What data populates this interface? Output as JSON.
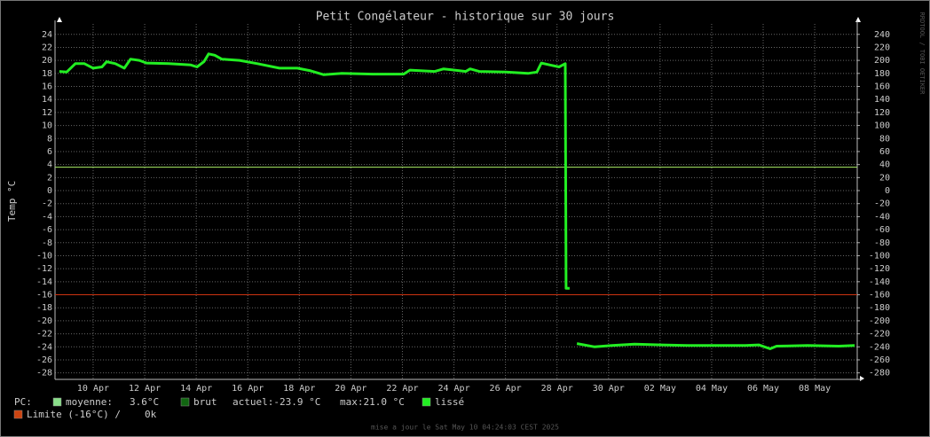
{
  "chart_data": {
    "type": "line",
    "title": "Petit Congélateur - historique sur 30 jours",
    "y_label": "Temp °C",
    "side_text": "RRDTOOL / TOBI OETIKER",
    "footer": "mise a jour le Sat May 10 04:24:03 CEST 2025",
    "xlim": [
      8.52,
      39.65
    ],
    "xticks": [
      {
        "value": 10,
        "label": "10 Apr"
      },
      {
        "value": 12,
        "label": "12 Apr"
      },
      {
        "value": 14,
        "label": "14 Apr"
      },
      {
        "value": 16,
        "label": "16 Apr"
      },
      {
        "value": 18,
        "label": "18 Apr"
      },
      {
        "value": 20,
        "label": "20 Apr"
      },
      {
        "value": 22,
        "label": "22 Apr"
      },
      {
        "value": 24,
        "label": "24 Apr"
      },
      {
        "value": 26,
        "label": "26 Apr"
      },
      {
        "value": 28,
        "label": "28 Apr"
      },
      {
        "value": 30,
        "label": "30 Apr"
      },
      {
        "value": 32,
        "label": "02 May"
      },
      {
        "value": 34,
        "label": "04 May"
      },
      {
        "value": 36,
        "label": "06 May"
      },
      {
        "value": 38,
        "label": "08 May"
      }
    ],
    "ylim": [
      -29,
      25.6
    ],
    "yticks": [
      24,
      22,
      20,
      18,
      16,
      14,
      12,
      10,
      8,
      6,
      4,
      2,
      0,
      -2,
      -4,
      -6,
      -8,
      -10,
      -12,
      -14,
      -16,
      -18,
      -20,
      -22,
      -24,
      -26,
      -28
    ],
    "y2lim": [
      -290,
      256
    ],
    "y2ticks": [
      240,
      220,
      200,
      180,
      160,
      140,
      120,
      100,
      80,
      60,
      40,
      20,
      0,
      -20,
      -40,
      -60,
      -80,
      -100,
      -120,
      -140,
      -160,
      -180,
      -200,
      -220,
      -240,
      -260,
      -280
    ],
    "grid": true,
    "x": [
      8.69,
      8.97,
      9.31,
      9.66,
      10,
      10.34,
      10.52,
      10.86,
      11.21,
      11.45,
      11.79,
      12.07,
      12.93,
      13.79,
      14.03,
      14.3,
      14.48,
      14.72,
      14.99,
      15.68,
      16.37,
      17.23,
      17.92,
      18.44,
      18.95,
      19.64,
      20.85,
      22.05,
      22.29,
      23.26,
      23.6,
      24.46,
      24.63,
      24.98,
      26.01,
      26.87,
      27.22,
      27.39,
      27.73,
      28.08,
      28.32,
      28.35,
      28.49,
      28.6,
      28.77,
      29.46,
      30.14,
      31.01,
      32.04,
      33.07,
      34.1,
      35.31,
      35.83,
      36.27,
      36.52,
      37.72,
      38.93,
      39.55
    ],
    "series": [
      {
        "name": "lissé",
        "color": "#22ee22",
        "values": [
          18.3,
          18.2,
          19.5,
          19.5,
          18.8,
          19.0,
          19.8,
          19.5,
          18.8,
          20.2,
          20.0,
          19.6,
          19.5,
          19.3,
          19.0,
          19.8,
          21.0,
          20.8,
          20.2,
          20.0,
          19.5,
          18.8,
          18.8,
          18.4,
          17.8,
          18.0,
          17.9,
          17.9,
          18.5,
          18.3,
          18.7,
          18.3,
          18.7,
          18.3,
          18.2,
          18.0,
          18.2,
          19.6,
          19.3,
          19.0,
          19.5,
          -15,
          -15,
          null,
          -23.5,
          -24.0,
          -23.8,
          -23.6,
          -23.7,
          -23.8,
          -23.8,
          -23.8,
          -23.7,
          -24.3,
          -23.9,
          -23.8,
          -23.9,
          -23.8
        ]
      },
      {
        "name": "brut",
        "color": "#116611"
      }
    ],
    "legend_prefix": "PC:",
    "reference_lines": [
      {
        "name": "moyenne:",
        "value": 3.6,
        "value_label": "3.6°C",
        "color": "#aaee66",
        "swatch": "#88dd88"
      },
      {
        "name": "Limite (-16°C) /",
        "value": -16,
        "value_label": "0k",
        "color": "#cc3311",
        "swatch": "#cc4411"
      }
    ],
    "current": "actuel:-23.9 °C",
    "max": "max:21.0 °C"
  }
}
